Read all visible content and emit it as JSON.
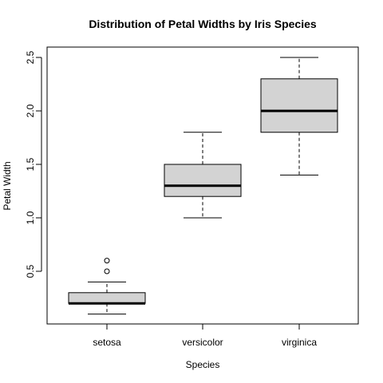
{
  "chart_data": {
    "type": "boxplot",
    "title": "Distribution of Petal Widths by Iris Species",
    "xlabel": "Species",
    "ylabel": "Petal Width",
    "ylim": [
      0.0,
      2.6
    ],
    "yticks": [
      "0.5",
      "1.0",
      "1.5",
      "2.0",
      "2.5"
    ],
    "grid": false,
    "categories": [
      "setosa",
      "versicolor",
      "virginica"
    ],
    "boxes": [
      {
        "category": "setosa",
        "whisker_low": 0.1,
        "q1": 0.2,
        "median": 0.2,
        "q3": 0.3,
        "whisker_high": 0.4,
        "outliers": [
          0.5,
          0.6
        ]
      },
      {
        "category": "versicolor",
        "whisker_low": 1.0,
        "q1": 1.2,
        "median": 1.3,
        "q3": 1.5,
        "whisker_high": 1.8,
        "outliers": []
      },
      {
        "category": "virginica",
        "whisker_low": 1.4,
        "q1": 1.8,
        "median": 2.0,
        "q3": 2.3,
        "whisker_high": 2.5,
        "outliers": []
      }
    ],
    "box_fill": "#d3d3d3"
  }
}
